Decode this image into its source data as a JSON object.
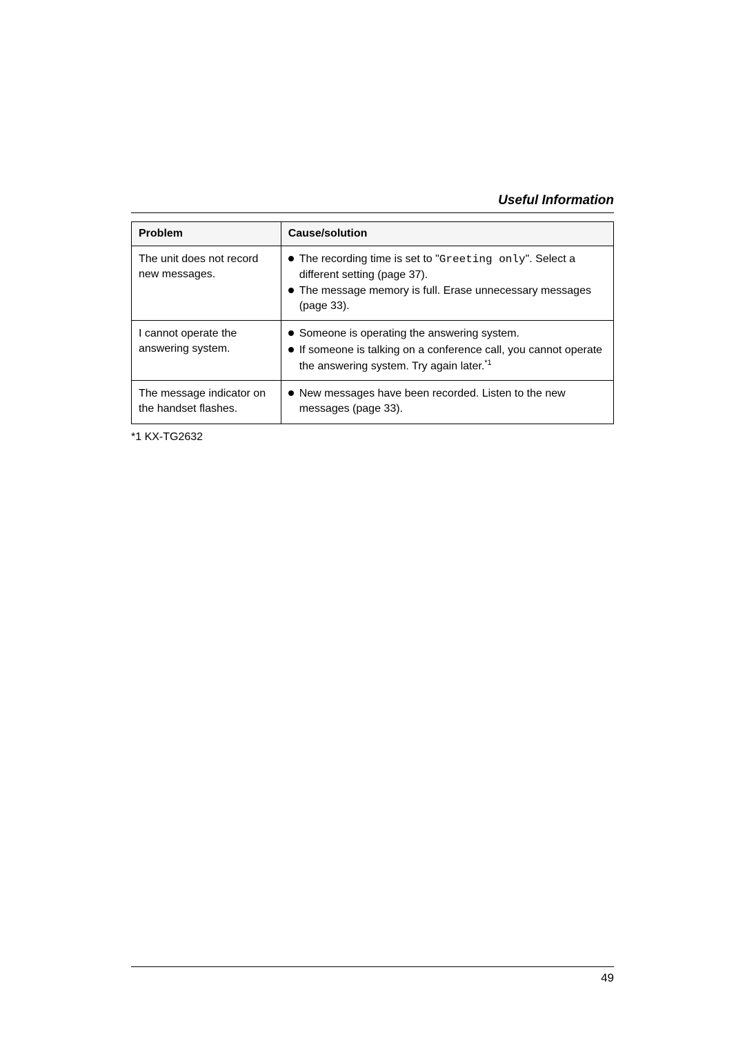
{
  "header": {
    "title": "Useful Information"
  },
  "table": {
    "columns": [
      {
        "label": "Problem"
      },
      {
        "label": "Cause/solution"
      }
    ],
    "rows": [
      {
        "problem": "The unit does not record new messages.",
        "solutions": [
          {
            "pre": "The recording time is set to \"",
            "mono": "Greeting only",
            "post": "\". Select a different setting (page 37)."
          },
          {
            "text": "The message memory is full. Erase unnecessary messages (page 33)."
          }
        ]
      },
      {
        "problem": "I cannot operate the answering system.",
        "solutions": [
          {
            "text": "Someone is operating the answering system."
          },
          {
            "text": "If someone is talking on a conference call, you cannot operate the answering system. Try again later.",
            "sup": "*1"
          }
        ]
      },
      {
        "problem": "The message indicator on the handset flashes.",
        "solutions": [
          {
            "text": "New messages have been recorded. Listen to the new messages (page 33)."
          }
        ]
      }
    ]
  },
  "footnote": "*1 KX-TG2632",
  "footer": {
    "page": "49"
  }
}
